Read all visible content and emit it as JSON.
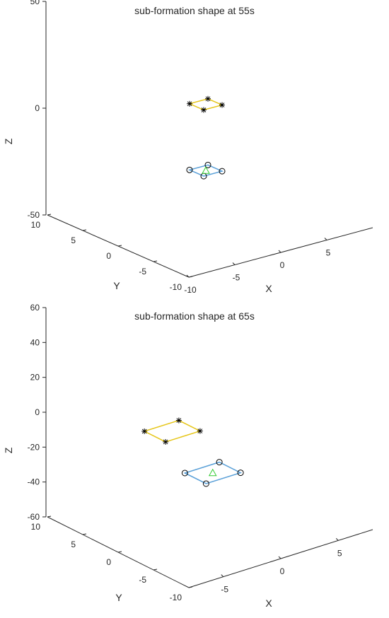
{
  "chart_data": [
    {
      "type": "scatter",
      "title": "sub-formation shape at 55s",
      "xlabel": "X",
      "ylabel": "Y",
      "zlabel": "Z",
      "xticks": [
        "-10",
        "-5",
        "0",
        "5"
      ],
      "yticks": [
        "-10",
        "-5",
        "0",
        "5",
        "10"
      ],
      "zticks": [
        "-50",
        "0",
        "50"
      ],
      "xlim": [
        -10,
        10
      ],
      "ylim": [
        -10,
        10
      ],
      "zlim": [
        -50,
        50
      ],
      "grid": false,
      "series": [
        {
          "marker": "asterisk",
          "color": "#e6c619",
          "points": [
            [
              -3,
              -3,
              10
            ],
            [
              -3,
              -1,
              10
            ],
            [
              -1,
              -1,
              10
            ],
            [
              -1,
              -3,
              10
            ]
          ]
        },
        {
          "marker": "circle",
          "color": "#5aa0d8",
          "points": [
            [
              -3,
              -3,
              -21
            ],
            [
              -3,
              -1,
              -21
            ],
            [
              -1,
              -1,
              -21
            ],
            [
              -1,
              -3,
              -21
            ]
          ]
        },
        {
          "marker": "triangle",
          "color": "#33cc33",
          "points": [
            [
              -2,
              -2,
              -21
            ]
          ]
        }
      ]
    },
    {
      "type": "scatter",
      "title": "sub-formation shape at 65s",
      "xlabel": "X",
      "ylabel": "Y",
      "zlabel": "Z",
      "xticks": [
        "-5",
        "0",
        "5"
      ],
      "yticks": [
        "-10",
        "-5",
        "0",
        "5",
        "10"
      ],
      "zticks": [
        "-60",
        "-40",
        "-20",
        "0",
        "20",
        "40",
        "60"
      ],
      "xlim": [
        -8,
        8
      ],
      "ylim": [
        -10,
        10
      ],
      "zlim": [
        -60,
        60
      ],
      "grid": false,
      "series": [
        {
          "marker": "asterisk",
          "color": "#e6c619",
          "points": [
            [
              -4.3,
              -0.7,
              -3
            ],
            [
              -4.3,
              2.3,
              -3
            ],
            [
              -1.3,
              2.3,
              -3
            ],
            [
              -1.3,
              -0.7,
              -3
            ]
          ]
        },
        {
          "marker": "circle",
          "color": "#5aa0d8",
          "points": [
            [
              -2.5,
              -3.5,
              -25
            ],
            [
              -2.5,
              -0.5,
              -25
            ],
            [
              0.5,
              -0.5,
              -25
            ],
            [
              0.5,
              -3.5,
              -25
            ]
          ]
        },
        {
          "marker": "triangle",
          "color": "#33cc33",
          "points": [
            [
              -1,
              -2,
              -25
            ]
          ]
        }
      ]
    }
  ]
}
